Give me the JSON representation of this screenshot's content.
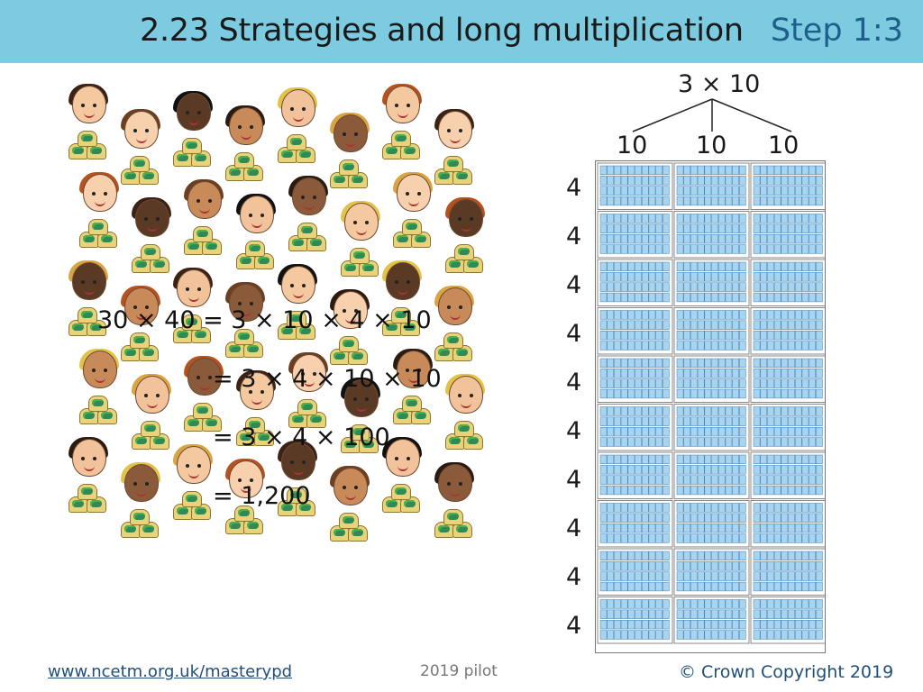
{
  "header": {
    "title": "2.23 Strategies and long multiplication",
    "step": "Step 1:3"
  },
  "equations": {
    "line1": "30 × 40 = 3 × 10 × 4 × 10",
    "line2": "= 3 × 4 × 10 × 10",
    "line3": "= 3 × 4 × 100",
    "line4": "= 1,200"
  },
  "array": {
    "top_label": "3 × 10",
    "column_labels": [
      "10",
      "10",
      "10"
    ],
    "row_labels": [
      "4",
      "4",
      "4",
      "4",
      "4",
      "4",
      "4",
      "4",
      "4",
      "4"
    ],
    "colors": {
      "cell_fill": "#a9d4f0",
      "cell_border": "#3a7fb5",
      "block_border": "#888888"
    }
  },
  "illustration": {
    "children_count": 40,
    "icon": "child-with-coin-pile-icon"
  },
  "footer": {
    "link": "www.ncetm.org.uk/masterypd",
    "center": "2019 pilot",
    "copyright": "© Crown Copyright 2019"
  }
}
